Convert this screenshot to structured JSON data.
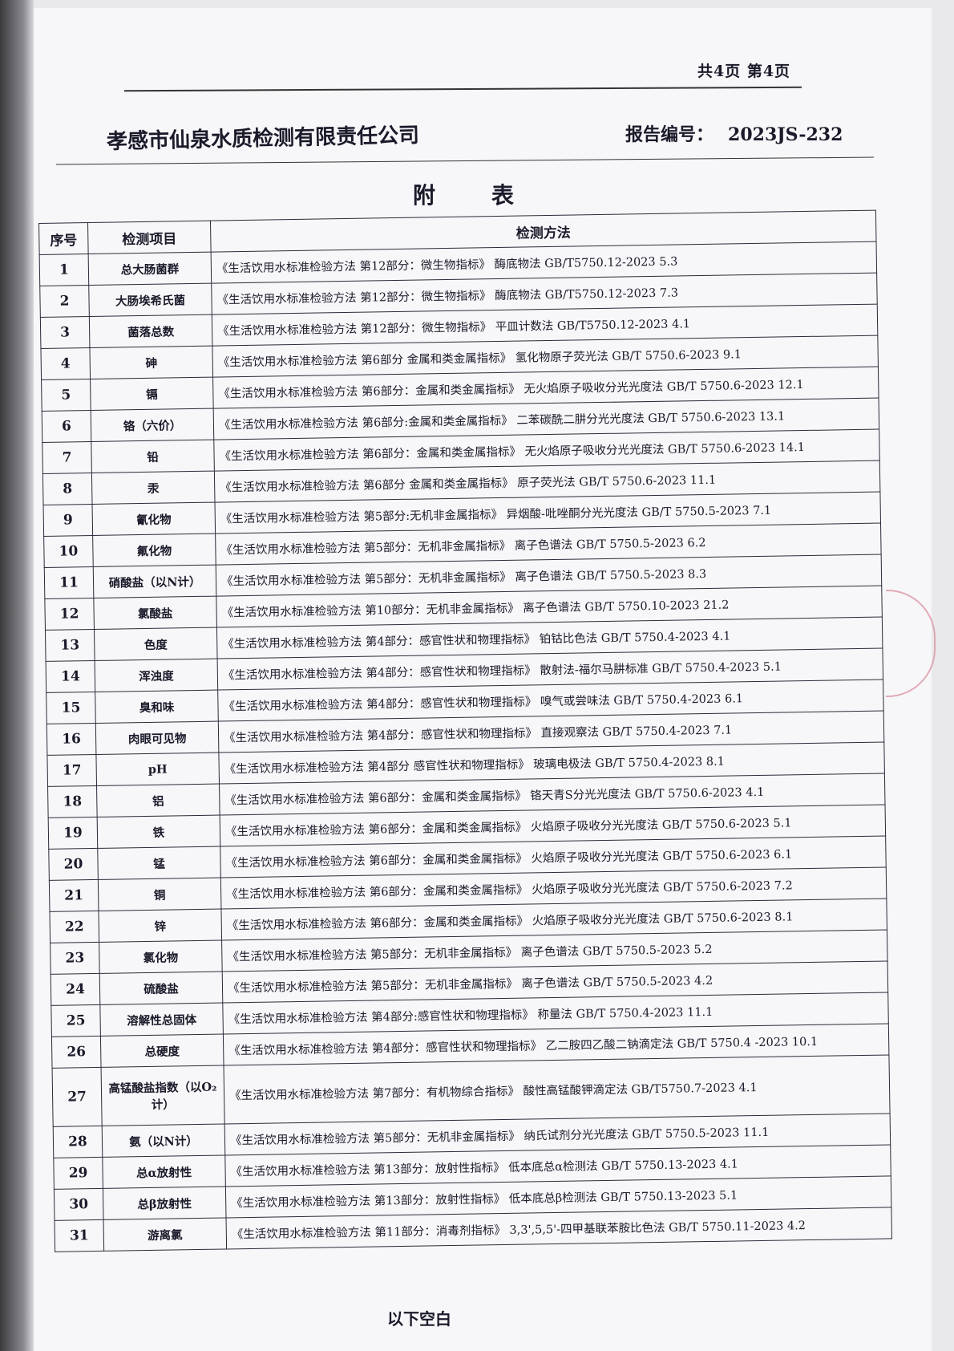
{
  "header": {
    "page_indicator": "共4页 第4页",
    "company": "孝感市仙泉水质检测有限责任公司",
    "report_no_label": "报告编号：",
    "report_no": "2023JS-232"
  },
  "title": "附表",
  "table": {
    "col_no": "序号",
    "col_item": "检测项目",
    "col_method": "检测方法",
    "rows": [
      {
        "no": "1",
        "item": "总大肠菌群",
        "method": "《生活饮用水标准检验方法 第12部分：微生物指标》 酶底物法 GB/T5750.12-2023 5.3"
      },
      {
        "no": "2",
        "item": "大肠埃希氏菌",
        "method": "《生活饮用水标准检验方法 第12部分：微生物指标》 酶底物法 GB/T5750.12-2023 7.3"
      },
      {
        "no": "3",
        "item": "菌落总数",
        "method": "《生活饮用水标准检验方法 第12部分：微生物指标》 平皿计数法 GB/T5750.12-2023 4.1"
      },
      {
        "no": "4",
        "item": "砷",
        "method": "《生活饮用水标准检验方法 第6部分 金属和类金属指标》 氢化物原子荧光法 GB/T 5750.6-2023 9.1"
      },
      {
        "no": "5",
        "item": "镉",
        "method": "《生活饮用水标准检验方法 第6部分：金属和类金属指标》 无火焰原子吸收分光光度法 GB/T 5750.6-2023 12.1"
      },
      {
        "no": "6",
        "item": "铬（六价）",
        "method": "《生活饮用水标准检验方法 第6部分:金属和类金属指标》 二苯碳酰二肼分光光度法 GB/T 5750.6-2023 13.1"
      },
      {
        "no": "7",
        "item": "铅",
        "method": "《生活饮用水标准检验方法 第6部分：金属和类金属指标》 无火焰原子吸收分光光度法 GB/T 5750.6-2023 14.1"
      },
      {
        "no": "8",
        "item": "汞",
        "method": "《生活饮用水标准检验方法 第6部分 金属和类金属指标》 原子荧光法 GB/T 5750.6-2023 11.1"
      },
      {
        "no": "9",
        "item": "氰化物",
        "method": "《生活饮用水标准检验方法 第5部分:无机非金属指标》 异烟酸-吡唑酮分光光度法 GB/T 5750.5-2023 7.1"
      },
      {
        "no": "10",
        "item": "氟化物",
        "method": "《生活饮用水标准检验方法 第5部分：无机非金属指标》 离子色谱法 GB/T 5750.5-2023 6.2"
      },
      {
        "no": "11",
        "item": "硝酸盐（以N计）",
        "method": "《生活饮用水标准检验方法 第5部分：无机非金属指标》 离子色谱法 GB/T 5750.5-2023 8.3"
      },
      {
        "no": "12",
        "item": "氯酸盐",
        "method": "《生活饮用水标准检验方法 第10部分：无机非金属指标》 离子色谱法 GB/T 5750.10-2023 21.2"
      },
      {
        "no": "13",
        "item": "色度",
        "method": "《生活饮用水标准检验方法 第4部分：感官性状和物理指标》 铂钴比色法 GB/T 5750.4-2023 4.1"
      },
      {
        "no": "14",
        "item": "浑浊度",
        "method": "《生活饮用水标准检验方法 第4部分：感官性状和物理指标》 散射法-福尔马肼标准 GB/T 5750.4-2023 5.1"
      },
      {
        "no": "15",
        "item": "臭和味",
        "method": "《生活饮用水标准检验方法 第4部分：感官性状和物理指标》 嗅气或尝味法 GB/T 5750.4-2023 6.1"
      },
      {
        "no": "16",
        "item": "肉眼可见物",
        "method": "《生活饮用水标准检验方法 第4部分：感官性状和物理指标》 直接观察法 GB/T 5750.4-2023 7.1"
      },
      {
        "no": "17",
        "item": "pH",
        "method": "《生活饮用水标准检验方法 第4部分 感官性状和物理指标》 玻璃电极法 GB/T 5750.4-2023 8.1"
      },
      {
        "no": "18",
        "item": "铝",
        "method": "《生活饮用水标准检验方法 第6部分：金属和类金属指标》 铬天青S分光光度法 GB/T 5750.6-2023 4.1"
      },
      {
        "no": "19",
        "item": "铁",
        "method": "《生活饮用水标准检验方法 第6部分：金属和类金属指标》 火焰原子吸收分光光度法 GB/T 5750.6-2023 5.1"
      },
      {
        "no": "20",
        "item": "锰",
        "method": "《生活饮用水标准检验方法 第6部分：金属和类金属指标》 火焰原子吸收分光光度法 GB/T 5750.6-2023 6.1"
      },
      {
        "no": "21",
        "item": "铜",
        "method": "《生活饮用水标准检验方法 第6部分：金属和类金属指标》 火焰原子吸收分光光度法 GB/T 5750.6-2023 7.2"
      },
      {
        "no": "22",
        "item": "锌",
        "method": "《生活饮用水标准检验方法 第6部分：金属和类金属指标》 火焰原子吸收分光光度法 GB/T 5750.6-2023 8.1"
      },
      {
        "no": "23",
        "item": "氯化物",
        "method": "《生活饮用水标准检验方法 第5部分：无机非金属指标》 离子色谱法 GB/T 5750.5-2023 5.2"
      },
      {
        "no": "24",
        "item": "硫酸盐",
        "method": "《生活饮用水标准检验方法 第5部分：无机非金属指标》 离子色谱法 GB/T 5750.5-2023 4.2"
      },
      {
        "no": "25",
        "item": "溶解性总固体",
        "method": "《生活饮用水标准检验方法 第4部分:感官性状和物理指标》 称量法 GB/T 5750.4-2023 11.1"
      },
      {
        "no": "26",
        "item": "总硬度",
        "method": "《生活饮用水标准检验方法 第4部分：感官性状和物理指标》 乙二胺四乙酸二钠滴定法 GB/T 5750.4 -2023 10.1"
      },
      {
        "no": "27",
        "item": "高锰酸盐指数（以O₂计）",
        "method": "《生活饮用水标准检验方法 第7部分：有机物综合指标》 酸性高锰酸钾滴定法 GB/T5750.7-2023 4.1"
      },
      {
        "no": "28",
        "item": "氨（以N计）",
        "method": "《生活饮用水标准检验方法 第5部分：无机非金属指标》 纳氏试剂分光光度法 GB/T 5750.5-2023 11.1"
      },
      {
        "no": "29",
        "item": "总α放射性",
        "method": "《生活饮用水标准检验方法 第13部分：放射性指标》 低本底总α检测法 GB/T 5750.13-2023 4.1"
      },
      {
        "no": "30",
        "item": "总β放射性",
        "method": "《生活饮用水标准检验方法 第13部分：放射性指标》 低本底总β检测法 GB/T 5750.13-2023 5.1"
      },
      {
        "no": "31",
        "item": "游离氯",
        "method": "《生活饮用水标准检验方法 第11部分：消毒剂指标》 3,3',5,5'-四甲基联苯胺比色法 GB/T 5750.11-2023 4.2"
      }
    ]
  },
  "footer": "以下空白",
  "colors": {
    "ink": "#1a1a2a",
    "paper": "#f7f7f9",
    "stamp": "#d98a9a"
  }
}
